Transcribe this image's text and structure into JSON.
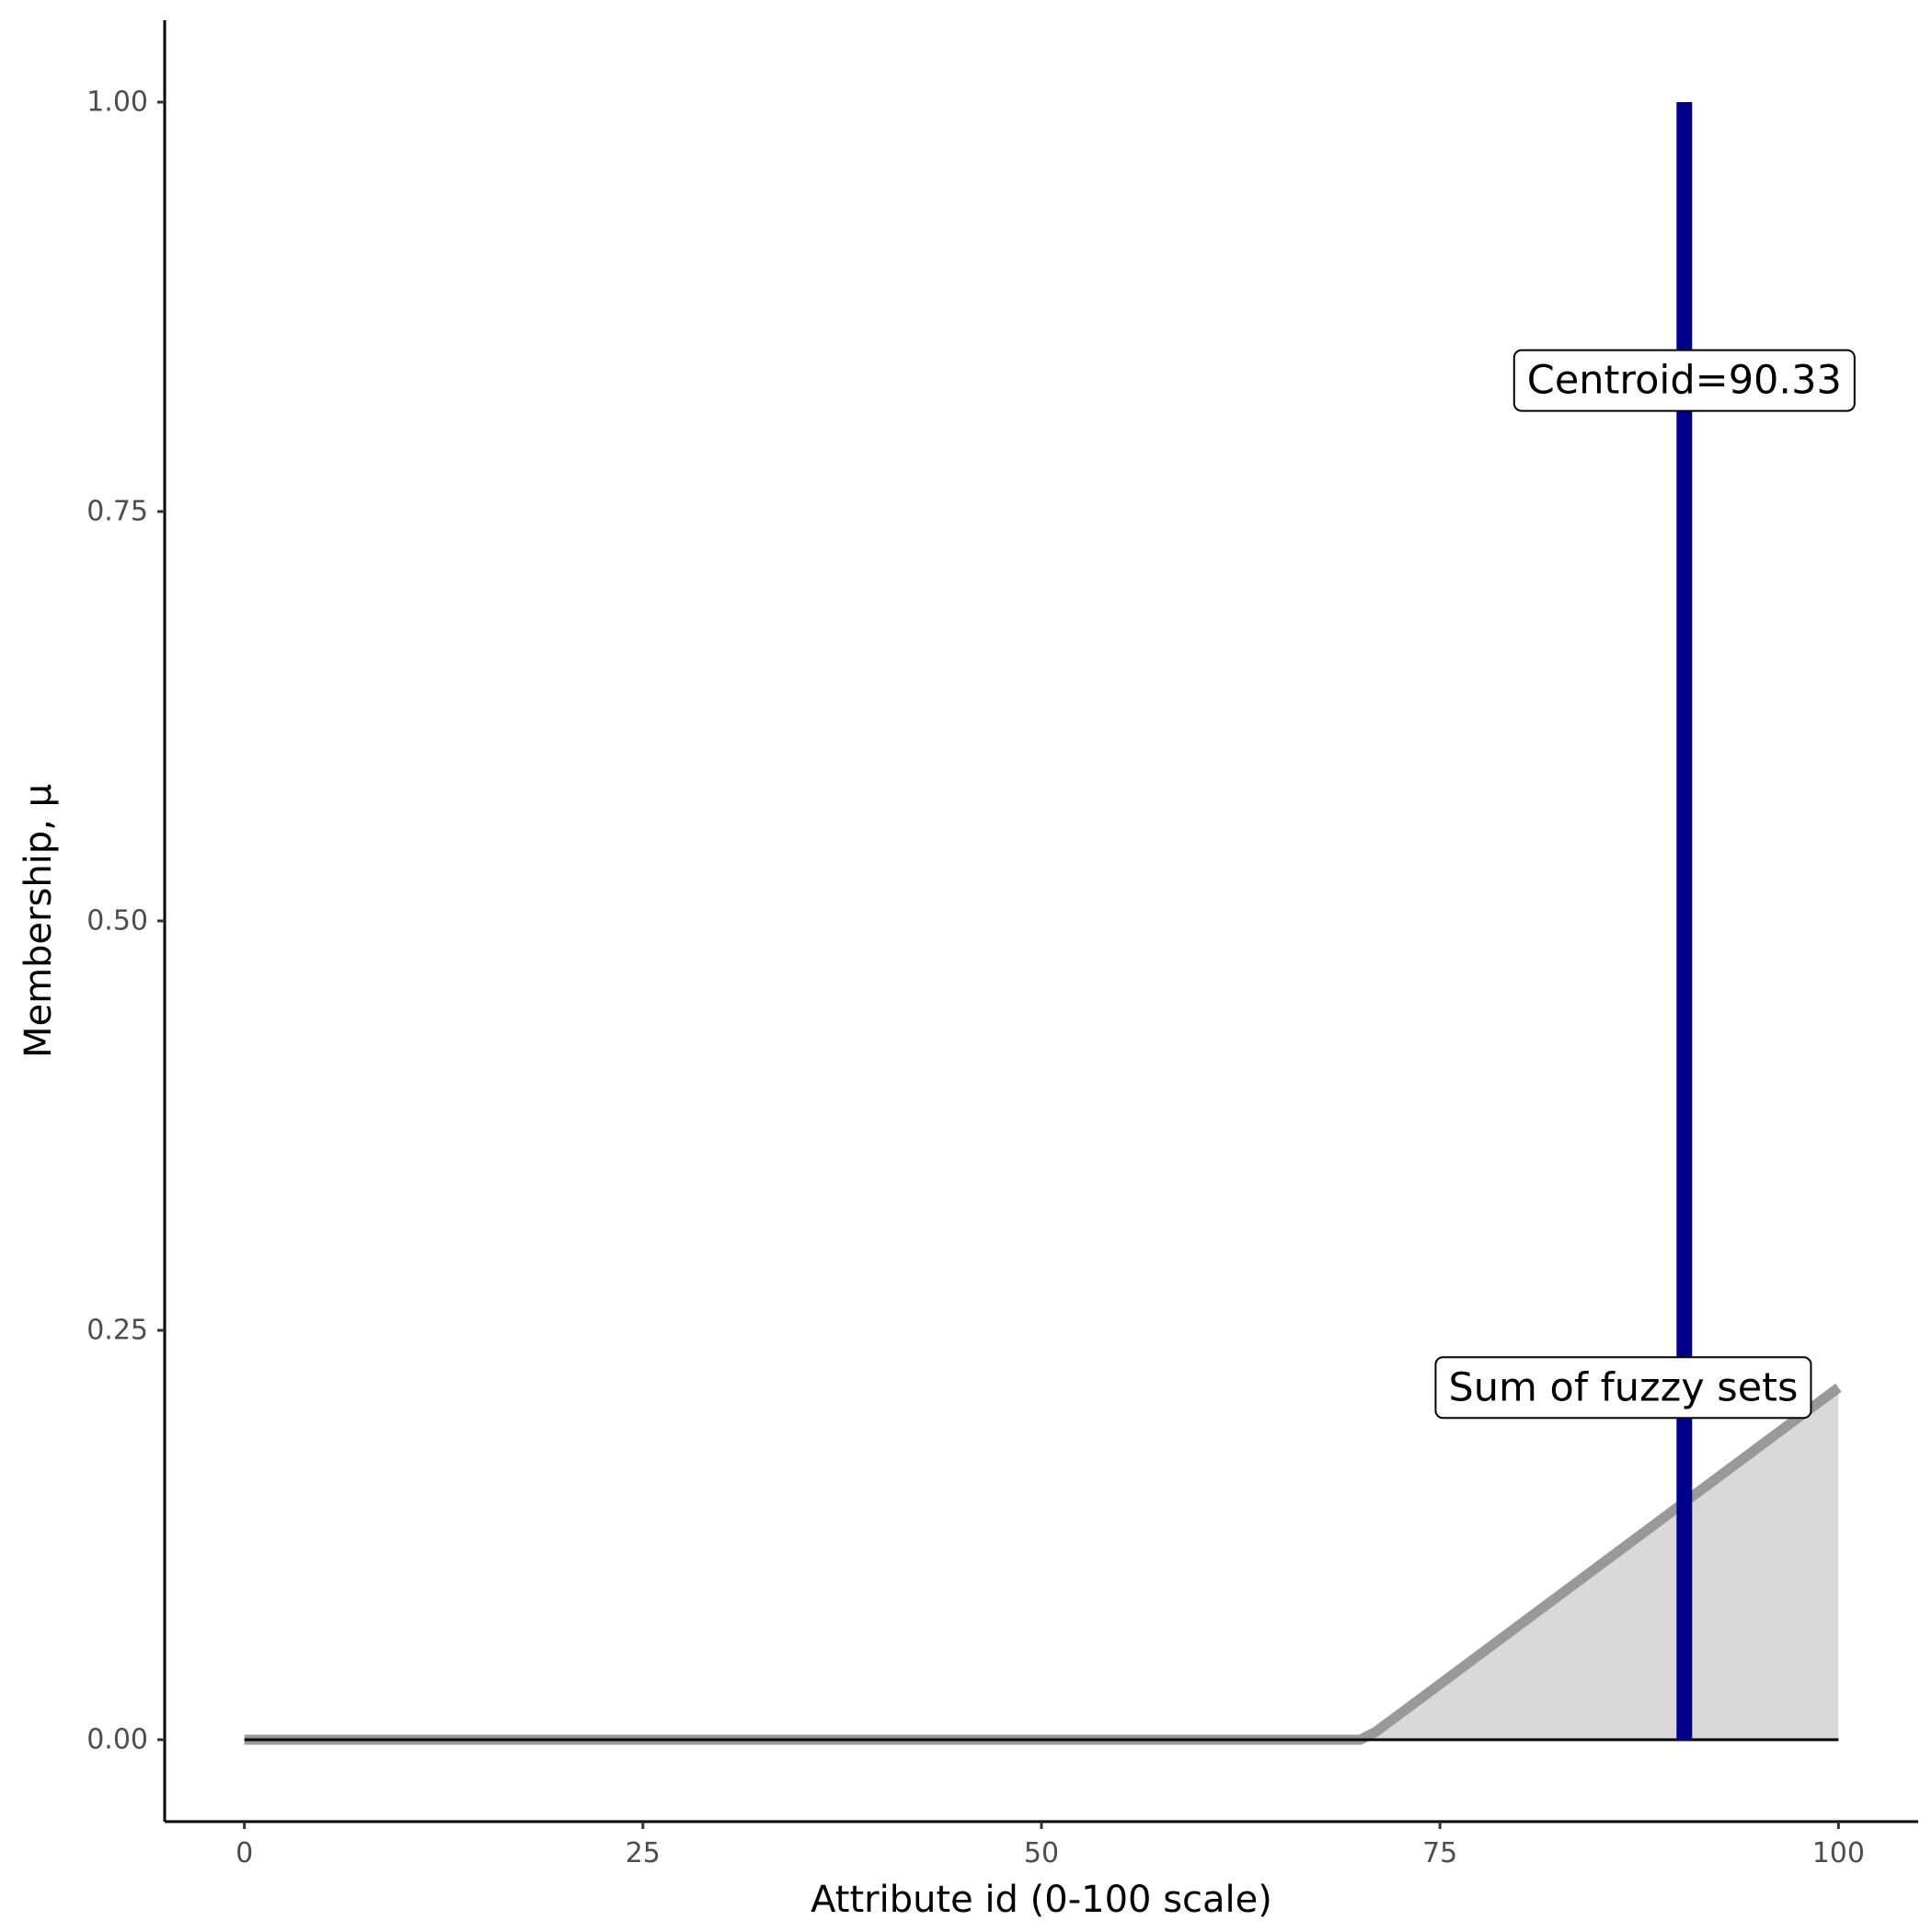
{
  "chart_data": {
    "type": "area",
    "xlabel": "Attribute id (0-100 scale)",
    "ylabel": "Membership, μ",
    "xlim": [
      -5,
      105
    ],
    "ylim": [
      -0.05,
      1.05
    ],
    "x_ticks": [
      {
        "value": 0,
        "label": "0"
      },
      {
        "value": 25,
        "label": "25"
      },
      {
        "value": 50,
        "label": "50"
      },
      {
        "value": 75,
        "label": "75"
      },
      {
        "value": 100,
        "label": "100"
      }
    ],
    "y_ticks": [
      {
        "value": 0,
        "label": "0.00"
      },
      {
        "value": 0.25,
        "label": "0.25"
      },
      {
        "value": 0.5,
        "label": "0.50"
      },
      {
        "value": 0.75,
        "label": "0.75"
      },
      {
        "value": 1,
        "label": "1.00"
      }
    ],
    "grid": false,
    "series": [
      {
        "kind": "area-line",
        "x": [
          0,
          70,
          71,
          100
        ],
        "y": [
          0,
          0,
          0.005,
          0.215
        ],
        "line_color": "#999999",
        "fill_color": "#d9d9d9"
      }
    ],
    "baseline": {
      "x": [
        0,
        100
      ],
      "y": 0,
      "color": "#000000"
    },
    "centroid": {
      "x": 90.33,
      "ymin": 0,
      "ymax": 1.0,
      "color": "#00008b"
    },
    "annotations": [
      {
        "id": "centroid-label",
        "text": "Centroid=90.33",
        "x": 90.33,
        "y": 0.83
      },
      {
        "id": "sum-label",
        "text": "Sum of fuzzy sets",
        "x": 86.5,
        "y": 0.215
      }
    ]
  }
}
